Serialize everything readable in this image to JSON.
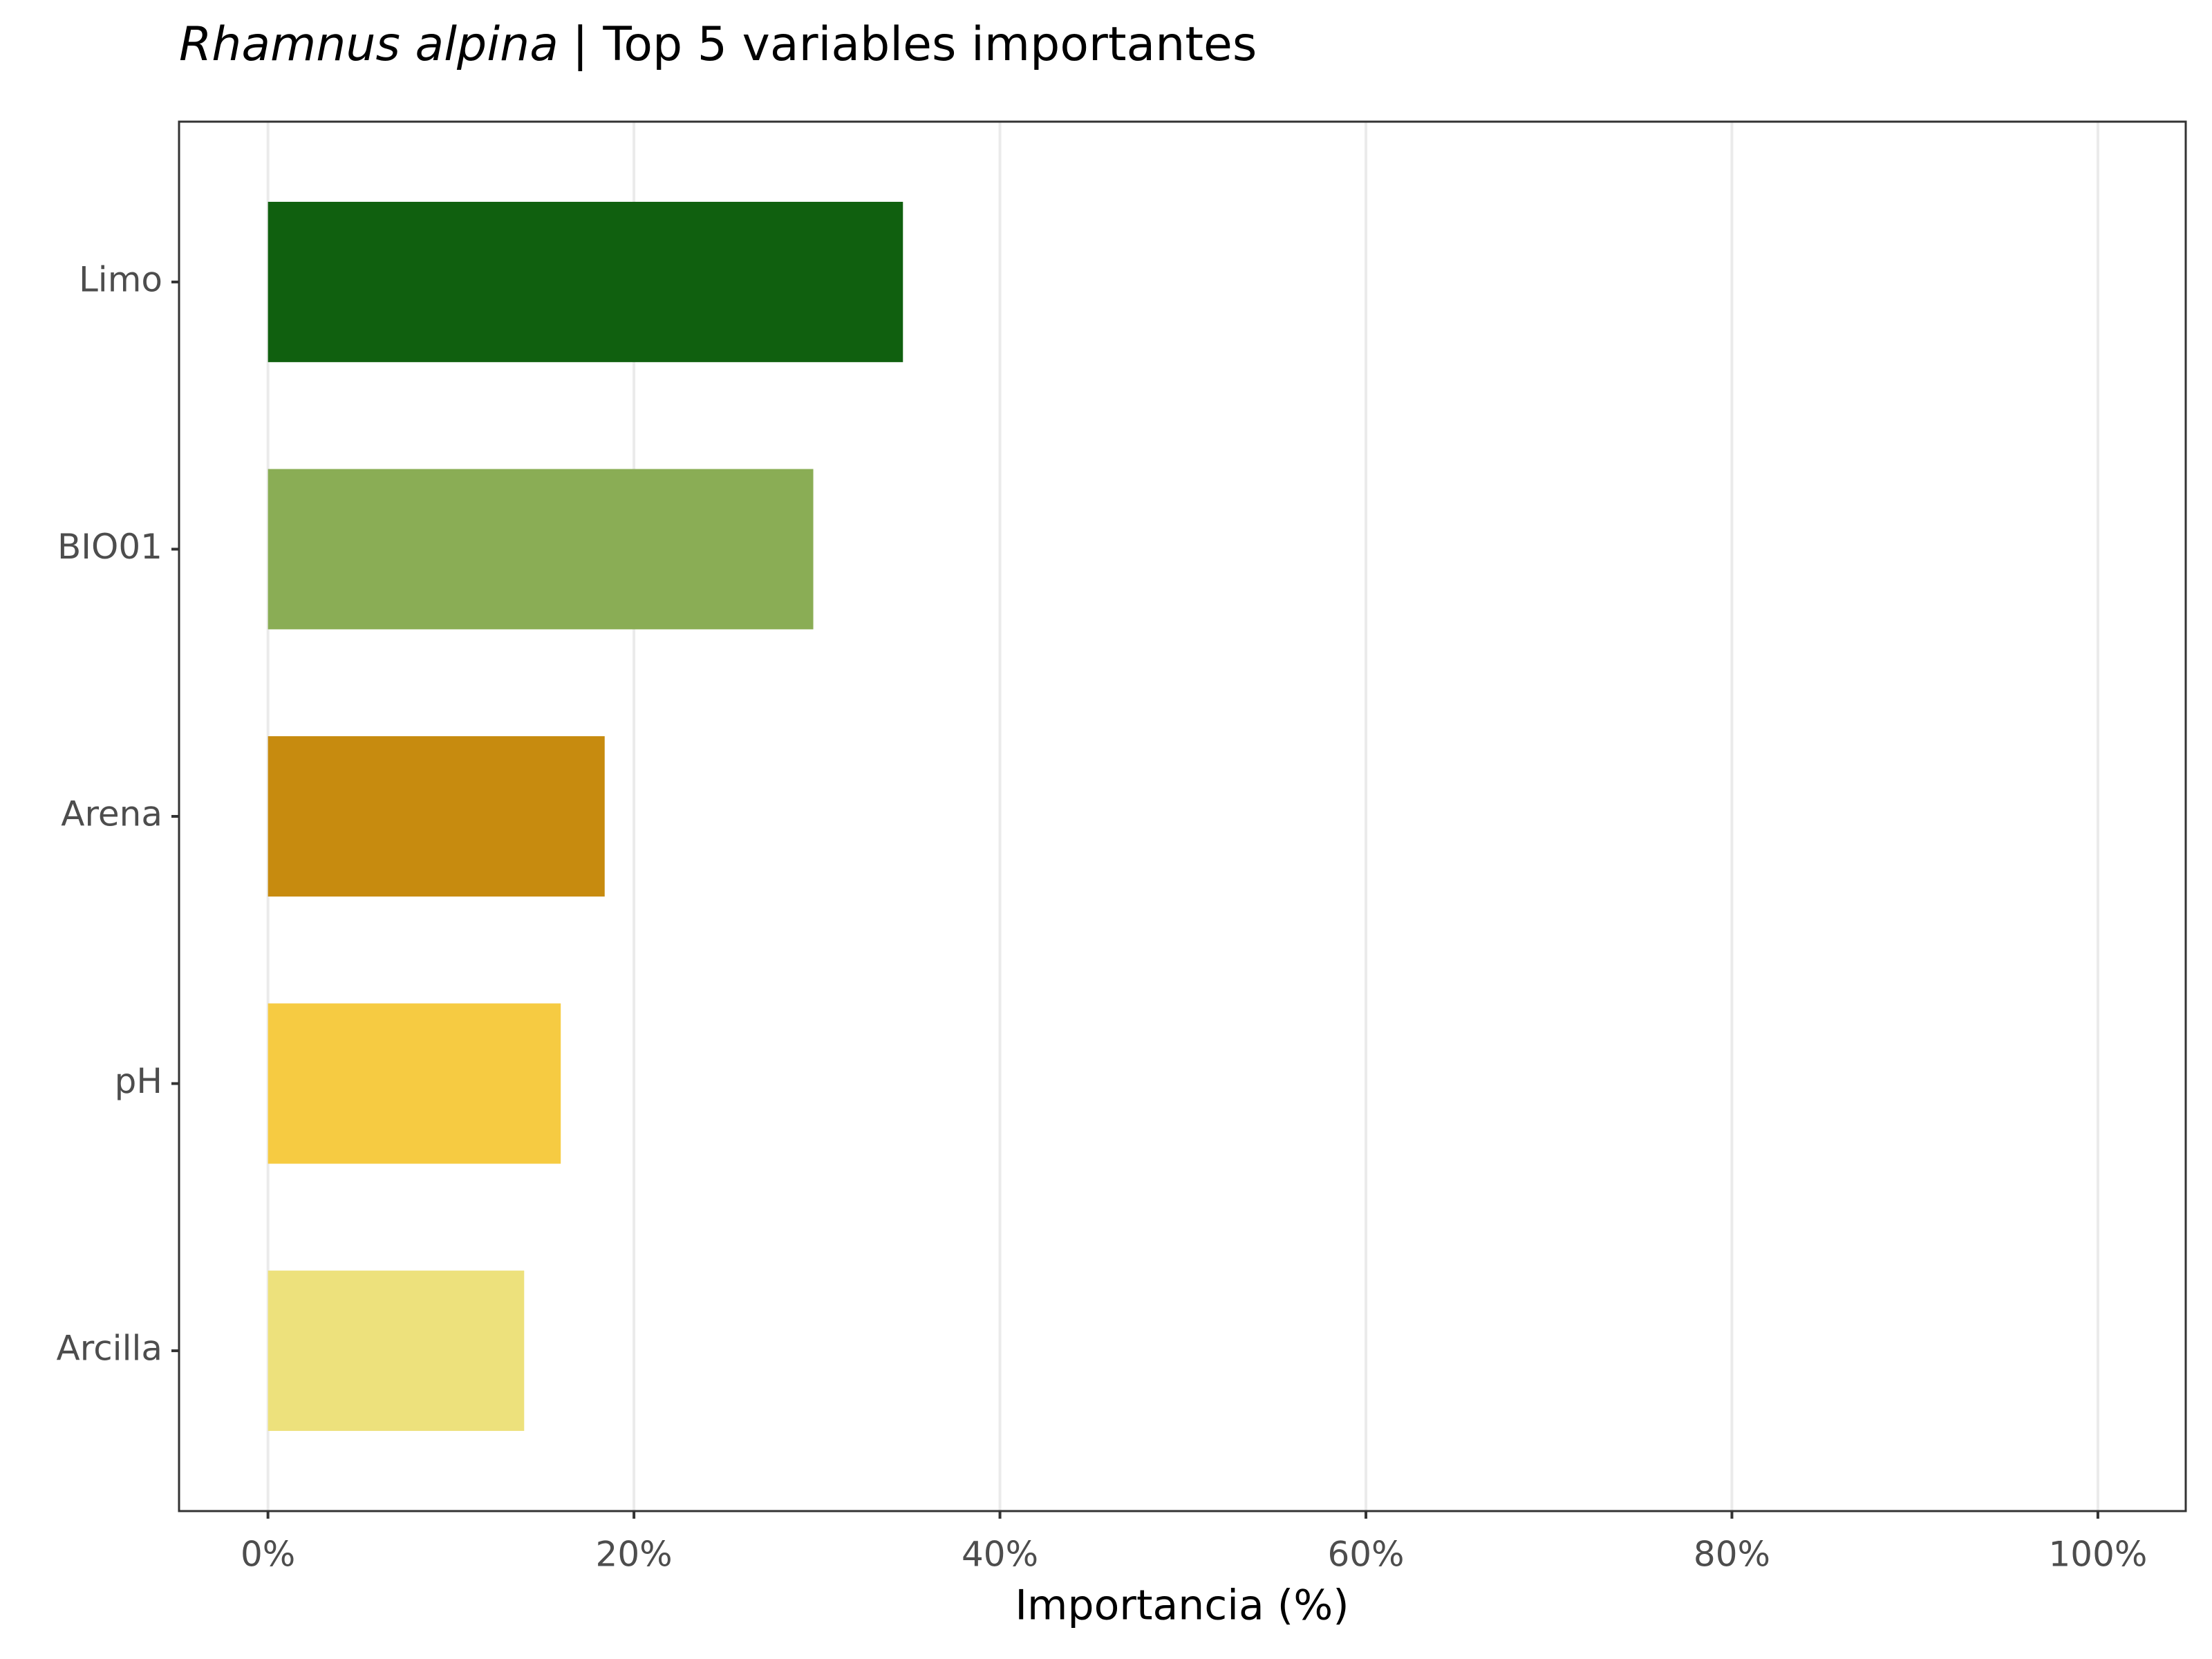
{
  "chart_data": {
    "type": "bar",
    "orientation": "horizontal",
    "title_species": "Rhamnus alpina",
    "title": "| Top 5 variables importantes",
    "x_label": "Importancia (%)",
    "categories": [
      "Limo",
      "BIO01",
      "Arena",
      "pH",
      "Arcilla"
    ],
    "values": [
      34.7,
      29.8,
      18.4,
      16.0,
      14.0
    ],
    "colors": [
      "#10600f",
      "#8aad55",
      "#c78b0f",
      "#f6cb42",
      "#ede17c"
    ],
    "xlim": [
      -4.86,
      104.8
    ],
    "xticks": [
      {
        "value": 0,
        "label": "0%"
      },
      {
        "value": 20,
        "label": "20%"
      },
      {
        "value": 40,
        "label": "40%"
      },
      {
        "value": 60,
        "label": "60%"
      },
      {
        "value": 80,
        "label": "80%"
      },
      {
        "value": 100,
        "label": "100%"
      }
    ],
    "grid": true
  }
}
